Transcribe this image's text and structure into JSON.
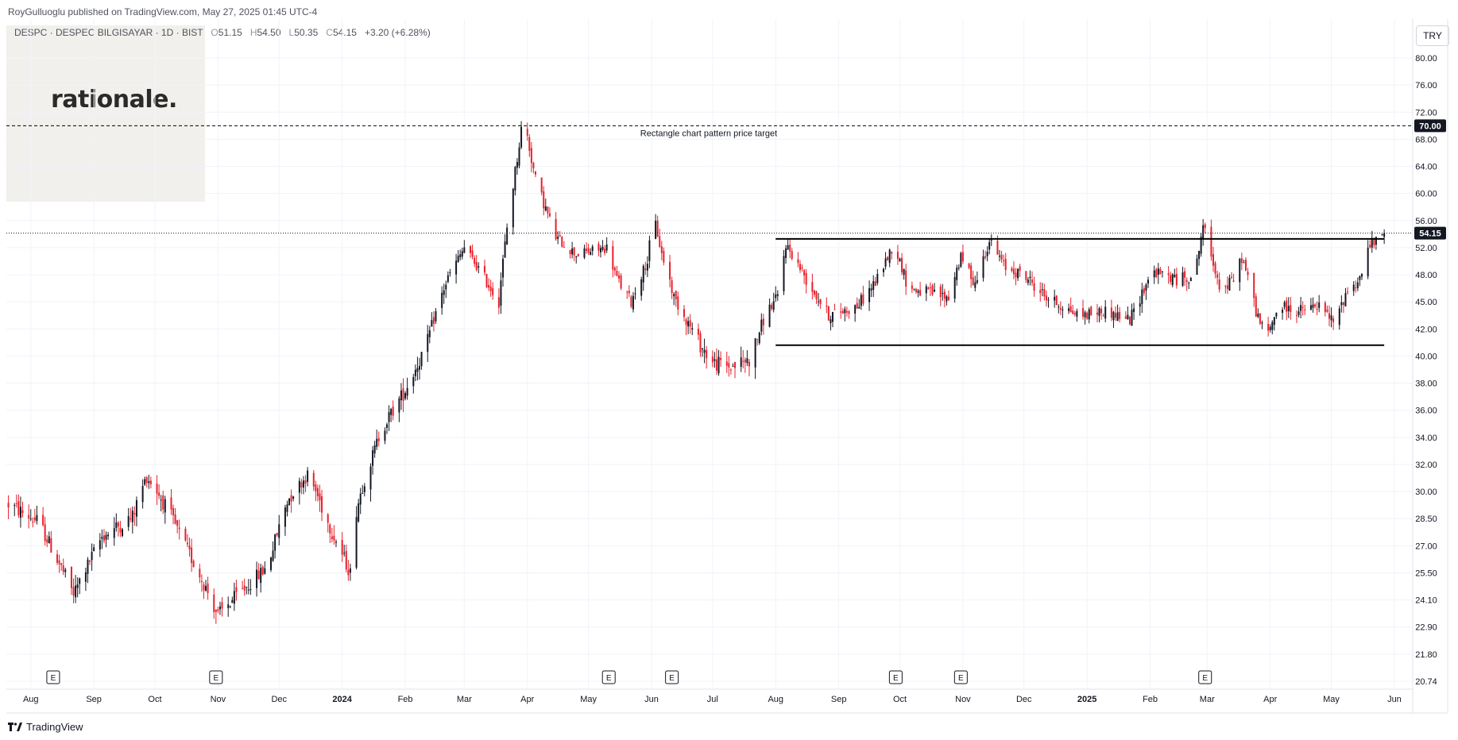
{
  "header": {
    "published": "RoyGulluoglu published on TradingView.com, May 27, 2025 01:45 UTC-4",
    "symbol": "DESPC · DESPEC BILGISAYAR · 1D · BIST",
    "open_label": "O",
    "open": "51.15",
    "high_label": "H",
    "high": "54.50",
    "low_label": "L",
    "low": "50.35",
    "close_label": "C",
    "close": "54.15",
    "change": "+3.20 (+6.28%)"
  },
  "watermark": {
    "logo_text": "rationale."
  },
  "currency": "TRY",
  "footer": {
    "brand": "TradingView",
    "icon": "tradingview-logo-icon"
  },
  "colors": {
    "up": "#131722",
    "down": "#e8202b",
    "grid": "#f0f3fa",
    "axis_text": "#131722",
    "annotation_text": "#131722"
  },
  "chart_data": {
    "type": "candlestick",
    "symbol": "DESPC",
    "interval": "1D",
    "currency": "TRY",
    "x_range": [
      "2023-07-20",
      "2025-06-10"
    ],
    "y_range": [
      20.0,
      82.0
    ],
    "y_ticks": [
      "80.00",
      "76.00",
      "72.00",
      "68.00",
      "64.00",
      "60.00",
      "56.00",
      "52.00",
      "48.00",
      "45.00",
      "42.00",
      "40.00",
      "38.00",
      "36.00",
      "34.00",
      "32.00",
      "30.00",
      "28.50",
      "27.00",
      "25.50",
      "24.10",
      "22.90",
      "21.80",
      "20.74"
    ],
    "x_ticks": [
      {
        "date": "2023-08-01",
        "label": "Aug"
      },
      {
        "date": "2023-09-01",
        "label": "Sep"
      },
      {
        "date": "2023-10-01",
        "label": "Oct"
      },
      {
        "date": "2023-11-01",
        "label": "Nov"
      },
      {
        "date": "2023-12-01",
        "label": "Dec"
      },
      {
        "date": "2024-01-01",
        "label": "2024"
      },
      {
        "date": "2024-02-01",
        "label": "Feb"
      },
      {
        "date": "2024-03-01",
        "label": "Mar"
      },
      {
        "date": "2024-04-01",
        "label": "Apr"
      },
      {
        "date": "2024-05-01",
        "label": "May"
      },
      {
        "date": "2024-06-01",
        "label": "Jun"
      },
      {
        "date": "2024-07-01",
        "label": "Jul"
      },
      {
        "date": "2024-08-01",
        "label": "Aug"
      },
      {
        "date": "2024-09-01",
        "label": "Sep"
      },
      {
        "date": "2024-10-01",
        "label": "Oct"
      },
      {
        "date": "2024-11-01",
        "label": "Nov"
      },
      {
        "date": "2024-12-01",
        "label": "Dec"
      },
      {
        "date": "2025-01-01",
        "label": "2025"
      },
      {
        "date": "2025-02-01",
        "label": "Feb"
      },
      {
        "date": "2025-03-01",
        "label": "Mar"
      },
      {
        "date": "2025-04-01",
        "label": "Apr"
      },
      {
        "date": "2025-05-01",
        "label": "May"
      },
      {
        "date": "2025-06-01",
        "label": "Jun"
      }
    ],
    "earnings_markers": [
      {
        "date": "2023-08-12",
        "label": "E"
      },
      {
        "date": "2023-10-31",
        "label": "E"
      },
      {
        "date": "2024-05-11",
        "label": "E"
      },
      {
        "date": "2024-06-11",
        "label": "E"
      },
      {
        "date": "2024-09-29",
        "label": "E"
      },
      {
        "date": "2024-10-31",
        "label": "E"
      },
      {
        "date": "2025-02-28",
        "label": "E"
      }
    ],
    "anchor_points": [
      [
        "2023-07-21",
        29.3
      ],
      [
        "2023-08-05",
        28.3
      ],
      [
        "2023-08-22",
        24.4
      ],
      [
        "2023-09-05",
        27.5
      ],
      [
        "2023-09-20",
        28.6
      ],
      [
        "2023-09-27",
        31.1
      ],
      [
        "2023-10-08",
        28.8
      ],
      [
        "2023-10-22",
        25.6
      ],
      [
        "2023-11-01",
        23.4
      ],
      [
        "2023-11-12",
        24.5
      ],
      [
        "2023-11-25",
        25.8
      ],
      [
        "2023-12-05",
        29.5
      ],
      [
        "2023-12-15",
        31.2
      ],
      [
        "2023-12-25",
        28.3
      ],
      [
        "2024-01-05",
        25.5
      ],
      [
        "2024-01-08",
        29.0
      ],
      [
        "2024-01-20",
        34.5
      ],
      [
        "2024-02-01",
        37.5
      ],
      [
        "2024-02-12",
        41.0
      ],
      [
        "2024-02-20",
        46.5
      ],
      [
        "2024-03-01",
        52.0
      ],
      [
        "2024-03-10",
        48.0
      ],
      [
        "2024-03-18",
        45.0
      ],
      [
        "2024-03-22",
        55.0
      ],
      [
        "2024-03-30",
        71.5
      ],
      [
        "2024-04-05",
        62.0
      ],
      [
        "2024-04-15",
        53.5
      ],
      [
        "2024-04-25",
        51.0
      ],
      [
        "2024-05-10",
        52.0
      ],
      [
        "2024-05-15",
        47.5
      ],
      [
        "2024-05-22",
        45.0
      ],
      [
        "2024-05-30",
        50.0
      ],
      [
        "2024-06-02",
        57.0
      ],
      [
        "2024-06-06",
        51.0
      ],
      [
        "2024-06-12",
        45.5
      ],
      [
        "2024-06-22",
        41.5
      ],
      [
        "2024-07-01",
        39.5
      ],
      [
        "2024-07-10",
        39.2
      ],
      [
        "2024-07-20",
        39.8
      ],
      [
        "2024-07-28",
        44.0
      ],
      [
        "2024-08-02",
        45.5
      ],
      [
        "2024-08-06",
        52.5
      ],
      [
        "2024-08-16",
        47.5
      ],
      [
        "2024-08-27",
        43.5
      ],
      [
        "2024-09-10",
        44.5
      ],
      [
        "2024-09-20",
        47.5
      ],
      [
        "2024-09-28",
        52.5
      ],
      [
        "2024-10-05",
        46.5
      ],
      [
        "2024-10-15",
        46.0
      ],
      [
        "2024-10-25",
        45.5
      ],
      [
        "2024-10-31",
        50.5
      ],
      [
        "2024-11-07",
        47.0
      ],
      [
        "2024-11-14",
        53.0
      ],
      [
        "2024-11-22",
        49.0
      ],
      [
        "2024-12-01",
        48.0
      ],
      [
        "2024-12-12",
        45.5
      ],
      [
        "2024-12-28",
        43.5
      ],
      [
        "2025-01-10",
        44.0
      ],
      [
        "2025-01-22",
        43.0
      ],
      [
        "2025-02-02",
        48.5
      ],
      [
        "2025-02-14",
        47.5
      ],
      [
        "2025-02-23",
        48.0
      ],
      [
        "2025-02-27",
        55.5
      ],
      [
        "2025-03-02",
        51.5
      ],
      [
        "2025-03-08",
        46.0
      ],
      [
        "2025-03-14",
        47.5
      ],
      [
        "2025-03-18",
        50.5
      ],
      [
        "2025-03-25",
        44.0
      ],
      [
        "2025-03-30",
        41.0
      ],
      [
        "2025-04-05",
        44.5
      ],
      [
        "2025-04-15",
        44.0
      ],
      [
        "2025-04-25",
        44.5
      ],
      [
        "2025-05-03",
        42.5
      ],
      [
        "2025-05-08",
        46.0
      ],
      [
        "2025-05-15",
        47.5
      ],
      [
        "2025-05-20",
        52.5
      ],
      [
        "2025-05-24",
        53.0
      ],
      [
        "2025-05-27",
        54.15
      ]
    ],
    "rectangle_pattern": {
      "start": "2024-08-01",
      "end": "2025-05-27",
      "resistance": 53.3,
      "support": 40.8
    },
    "price_target": {
      "value": 70.0,
      "label": "70.00",
      "annotation": "Rectangle chart pattern price target"
    },
    "last_price": {
      "value": 54.15,
      "label": "54.15"
    }
  }
}
